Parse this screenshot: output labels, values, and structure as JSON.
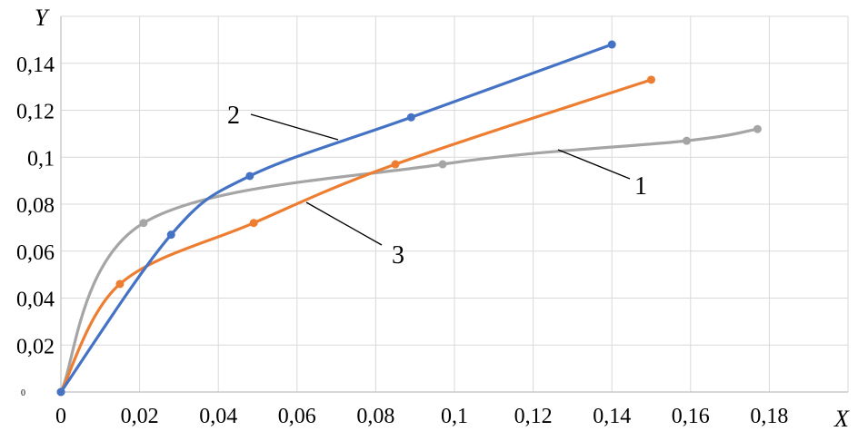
{
  "chart_data": {
    "type": "line",
    "title": "",
    "xlabel": "X",
    "ylabel": "Y",
    "xlim": [
      0,
      0.2
    ],
    "ylim": [
      0,
      0.16
    ],
    "x_ticks": [
      "0",
      "0,02",
      "0,04",
      "0,06",
      "0,08",
      "0,1",
      "0,12",
      "0,14",
      "0,16",
      "0,18"
    ],
    "y_ticks": [
      "0",
      "0,02",
      "0,04",
      "0,06",
      "0,08",
      "0,1",
      "0,12",
      "0,14"
    ],
    "grid": true,
    "series": [
      {
        "name": "1",
        "color": "#a5a5a5",
        "points": [
          [
            0,
            0
          ],
          [
            0.021,
            0.072
          ],
          [
            0.097,
            0.097
          ],
          [
            0.159,
            0.107
          ],
          [
            0.177,
            0.112
          ]
        ]
      },
      {
        "name": "2",
        "color": "#4472c4",
        "points": [
          [
            0,
            0
          ],
          [
            0.028,
            0.067
          ],
          [
            0.048,
            0.092
          ],
          [
            0.089,
            0.117
          ],
          [
            0.14,
            0.148
          ]
        ]
      },
      {
        "name": "3",
        "color": "#ed7d31",
        "points": [
          [
            0,
            0
          ],
          [
            0.015,
            0.046
          ],
          [
            0.049,
            0.072
          ],
          [
            0.085,
            0.097
          ],
          [
            0.15,
            0.133
          ]
        ]
      }
    ],
    "annotations": [
      {
        "text": "1",
        "series": "1"
      },
      {
        "text": "2",
        "series": "2"
      },
      {
        "text": "3",
        "series": "3"
      }
    ]
  }
}
